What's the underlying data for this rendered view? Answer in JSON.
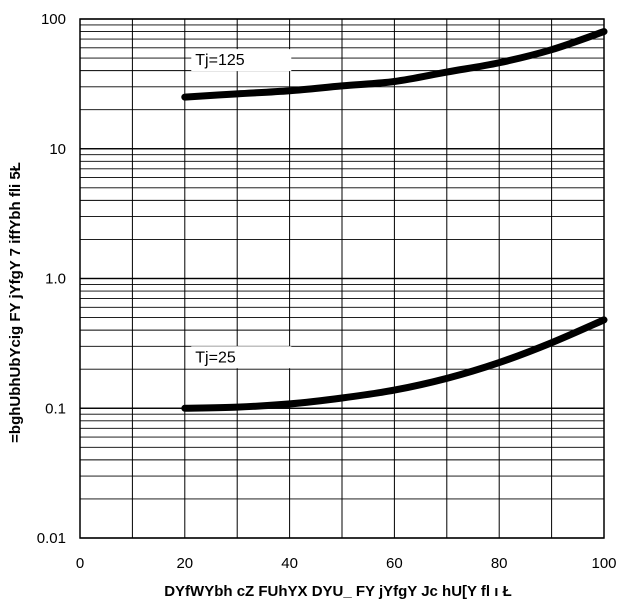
{
  "chart_data": {
    "type": "line",
    "xlabel": "DYfWYbh cZ FUhYX DYU_ FY jYfgY Jc hU[Y fl ı Ł",
    "ylabel": "=bghUbhUbYcig FY jYfgY 7 iffYbh fli 5Ł",
    "xlim": [
      0,
      100
    ],
    "ylim": [
      0.01,
      100
    ],
    "yscale": "log",
    "grid": true,
    "x_ticks": [
      "0",
      "20",
      "40",
      "60",
      "80",
      "100"
    ],
    "y_ticks": [
      "0.01",
      "0.1",
      "1.0",
      "10",
      "100"
    ],
    "series": [
      {
        "name": "Tj=125",
        "x": [
          20,
          30,
          40,
          50,
          60,
          70,
          80,
          90,
          100
        ],
        "y": [
          25,
          26.5,
          28,
          30.5,
          33,
          39,
          46,
          58,
          80
        ]
      },
      {
        "name": "Tj=25",
        "x": [
          20,
          30,
          40,
          50,
          60,
          70,
          80,
          90,
          100
        ],
        "y": [
          0.1,
          0.102,
          0.108,
          0.12,
          0.138,
          0.17,
          0.225,
          0.32,
          0.48
        ]
      }
    ],
    "annotations": [
      "Tj=125",
      "Tj=25"
    ]
  }
}
